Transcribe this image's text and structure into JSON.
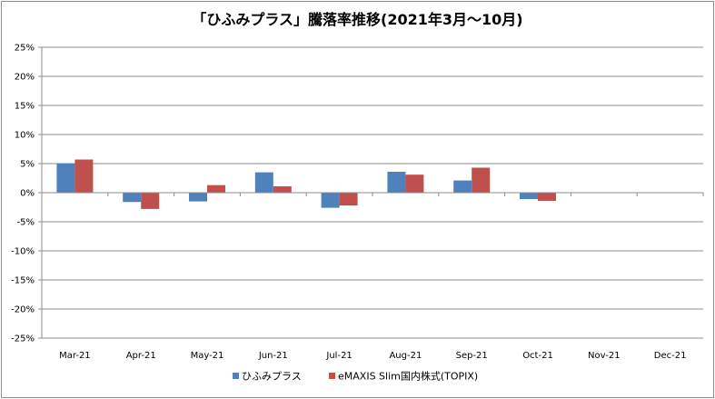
{
  "chart_data": {
    "type": "bar",
    "title": "「ひふみプラス」騰落率推移(2021年3月～10月)",
    "categories": [
      "Mar-21",
      "Apr-21",
      "May-21",
      "Jun-21",
      "Jul-21",
      "Aug-21",
      "Sep-21",
      "Oct-21",
      "Nov-21",
      "Dec-21"
    ],
    "series": [
      {
        "name": "ひふみプラス",
        "color": "#4f81bd",
        "values": [
          5.0,
          -1.6,
          -1.5,
          3.5,
          -2.6,
          3.6,
          2.1,
          -1.1,
          null,
          null
        ]
      },
      {
        "name": "eMAXIS Slim国内株式(TOPIX)",
        "color": "#c0504d",
        "values": [
          5.7,
          -2.8,
          1.3,
          1.1,
          -2.2,
          3.1,
          4.3,
          -1.4,
          null,
          null
        ]
      }
    ],
    "y_ticks": [
      "25%",
      "20%",
      "15%",
      "10%",
      "5%",
      "0%",
      "-5%",
      "-10%",
      "-15%",
      "-20%",
      "-25%"
    ],
    "ylim": [
      -25,
      25
    ],
    "y_unit": "%",
    "grid": true,
    "legend_position": "bottom"
  }
}
